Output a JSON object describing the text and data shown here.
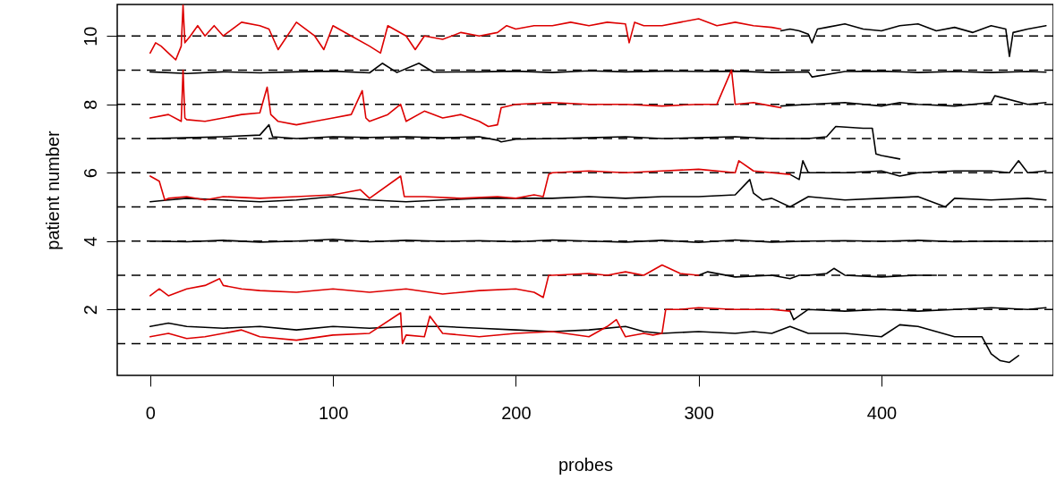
{
  "chart_data": {
    "type": "line",
    "xlabel": "probes",
    "ylabel": "patient number",
    "xlim": [
      -18,
      494
    ],
    "ylim": [
      0.07,
      10.92
    ],
    "xticks": [
      0,
      100,
      200,
      300,
      400
    ],
    "yticks": [
      2,
      4,
      6,
      8,
      10
    ],
    "grid": false,
    "marker": "none",
    "line_style": "solid",
    "ref_lines": [
      {
        "axis": "y",
        "value": 1,
        "line_style": "dashed",
        "color": "#000000"
      },
      {
        "axis": "y",
        "value": 2,
        "line_style": "dashed",
        "color": "#000000"
      },
      {
        "axis": "y",
        "value": 3,
        "line_style": "dashed",
        "color": "#000000"
      },
      {
        "axis": "y",
        "value": 4,
        "line_style": "dashed",
        "color": "#000000"
      },
      {
        "axis": "y",
        "value": 5,
        "line_style": "dashed",
        "color": "#000000"
      },
      {
        "axis": "y",
        "value": 6,
        "line_style": "dashed",
        "color": "#000000"
      },
      {
        "axis": "y",
        "value": 7,
        "line_style": "dashed",
        "color": "#000000"
      },
      {
        "axis": "y",
        "value": 8,
        "line_style": "dashed",
        "color": "#000000"
      },
      {
        "axis": "y",
        "value": 9,
        "line_style": "dashed",
        "color": "#000000"
      },
      {
        "axis": "y",
        "value": 10,
        "line_style": "dashed",
        "color": "#000000"
      }
    ],
    "series": [
      {
        "color": "#000000",
        "x": [
          345,
          350,
          355,
          360,
          362,
          365,
          370,
          380,
          390,
          400,
          410,
          420,
          430,
          440,
          450,
          460,
          468,
          470,
          472,
          480,
          490
        ],
        "values": [
          10.15,
          10.2,
          10.15,
          10.05,
          9.8,
          10.2,
          10.25,
          10.35,
          10.2,
          10.15,
          10.3,
          10.35,
          10.15,
          10.25,
          10.1,
          10.3,
          10.2,
          9.4,
          10.1,
          10.2,
          10.3
        ]
      },
      {
        "color": "#000000",
        "x": [
          0,
          20,
          40,
          60,
          80,
          100,
          120,
          127,
          135,
          147,
          155,
          180,
          200,
          220,
          240,
          260,
          280,
          300,
          320,
          340,
          360,
          362,
          380,
          400,
          420,
          440,
          460,
          480,
          490
        ],
        "values": [
          8.95,
          8.9,
          8.95,
          8.92,
          8.95,
          8.97,
          8.92,
          9.2,
          8.93,
          9.2,
          8.94,
          8.95,
          8.97,
          8.93,
          8.98,
          8.95,
          8.97,
          8.96,
          8.97,
          8.93,
          8.95,
          8.8,
          8.96,
          8.97,
          8.93,
          8.96,
          8.93,
          8.96,
          8.94
        ]
      },
      {
        "color": "#000000",
        "x": [
          345,
          360,
          380,
          400,
          410,
          420,
          440,
          460,
          462,
          480,
          490
        ],
        "values": [
          7.95,
          8.0,
          8.05,
          7.95,
          8.05,
          8.0,
          7.95,
          8.05,
          8.25,
          8.0,
          8.05
        ]
      },
      {
        "color": "#000000",
        "x": [
          0,
          20,
          40,
          60,
          65,
          67,
          80,
          100,
          120,
          140,
          160,
          180,
          190,
          192,
          200,
          220,
          240,
          260,
          280,
          300,
          320,
          340,
          360,
          370,
          375,
          390,
          395,
          397,
          400,
          410
        ],
        "values": [
          7.0,
          7.02,
          7.05,
          7.1,
          7.4,
          7.05,
          7.0,
          7.05,
          7.03,
          7.05,
          7.02,
          7.05,
          6.95,
          6.9,
          6.98,
          7.0,
          7.02,
          7.05,
          7.0,
          7.02,
          7.05,
          7.0,
          7.0,
          7.05,
          7.35,
          7.3,
          7.3,
          6.55,
          6.5,
          6.4
        ]
      },
      {
        "color": "#000000",
        "x": [
          350,
          355,
          357,
          360,
          380,
          400,
          410,
          420,
          440,
          460,
          470,
          475,
          480,
          490
        ],
        "values": [
          5.95,
          5.8,
          6.35,
          6.0,
          6.0,
          6.05,
          5.9,
          6.0,
          6.05,
          6.05,
          6.0,
          6.35,
          6.0,
          6.05
        ]
      },
      {
        "color": "#000000",
        "x": [
          0,
          10,
          20,
          40,
          60,
          80,
          100,
          120,
          140,
          160,
          180,
          200,
          220,
          240,
          260,
          280,
          300,
          320,
          328,
          330,
          335,
          340,
          350,
          360,
          380,
          400,
          420,
          435,
          440,
          460,
          480,
          490
        ],
        "values": [
          5.15,
          5.2,
          5.25,
          5.2,
          5.15,
          5.2,
          5.3,
          5.2,
          5.15,
          5.2,
          5.25,
          5.25,
          5.25,
          5.3,
          5.25,
          5.3,
          5.3,
          5.35,
          5.8,
          5.4,
          5.2,
          5.25,
          5.0,
          5.3,
          5.2,
          5.25,
          5.3,
          5.0,
          5.25,
          5.2,
          5.25,
          5.2
        ]
      },
      {
        "color": "#000000",
        "x": [
          0,
          20,
          40,
          60,
          80,
          100,
          120,
          140,
          160,
          180,
          200,
          220,
          240,
          260,
          280,
          300,
          320,
          340,
          360,
          380,
          400,
          420,
          440,
          460,
          480,
          490
        ],
        "values": [
          4.0,
          3.98,
          4.02,
          3.97,
          4.0,
          4.05,
          3.98,
          4.02,
          3.99,
          4.01,
          3.98,
          4.03,
          4.0,
          3.97,
          4.02,
          3.96,
          4.03,
          3.97,
          4.0,
          4.01,
          3.99,
          4.02,
          3.98,
          4.0,
          3.99,
          4.0
        ]
      },
      {
        "color": "#000000",
        "x": [
          300,
          305,
          320,
          340,
          350,
          355,
          360,
          370,
          374,
          380,
          400,
          420,
          430
        ],
        "values": [
          3.0,
          3.1,
          2.95,
          3.0,
          2.9,
          3.0,
          3.0,
          3.05,
          3.2,
          3.0,
          2.95,
          3.0,
          3.0
        ]
      },
      {
        "color": "#000000",
        "x": [
          350,
          352,
          360,
          380,
          400,
          420,
          440,
          460,
          480,
          490
        ],
        "values": [
          1.95,
          1.7,
          2.0,
          1.95,
          2.0,
          1.95,
          2.0,
          2.05,
          2.0,
          2.05
        ]
      },
      {
        "color": "#000000",
        "x": [
          0,
          10,
          20,
          40,
          60,
          80,
          100,
          120,
          140,
          160,
          180,
          200,
          220,
          240,
          260,
          270,
          280,
          300,
          320,
          330,
          340,
          350,
          360,
          380,
          400,
          410,
          420,
          430,
          440,
          450,
          455,
          460,
          465,
          470,
          475
        ],
        "values": [
          1.5,
          1.6,
          1.5,
          1.45,
          1.5,
          1.4,
          1.5,
          1.45,
          1.5,
          1.5,
          1.45,
          1.4,
          1.35,
          1.4,
          1.5,
          1.35,
          1.3,
          1.35,
          1.3,
          1.35,
          1.3,
          1.5,
          1.3,
          1.3,
          1.2,
          1.55,
          1.5,
          1.35,
          1.2,
          1.2,
          1.2,
          0.7,
          0.5,
          0.45,
          0.65
        ]
      },
      {
        "color": "#dd0000",
        "x": [
          0,
          3,
          6,
          10,
          14,
          17,
          18,
          19,
          22,
          26,
          30,
          35,
          40,
          50,
          60,
          65,
          70,
          80,
          90,
          95,
          100,
          110,
          120,
          126,
          130,
          140,
          145,
          150,
          160,
          170,
          180,
          190,
          195,
          200,
          210,
          220,
          230,
          240,
          250,
          260,
          262,
          265,
          270,
          280,
          290,
          300,
          310,
          320,
          330,
          340,
          345
        ],
        "values": [
          9.5,
          9.8,
          9.7,
          9.5,
          9.3,
          9.7,
          10.9,
          9.8,
          10.0,
          10.3,
          10.0,
          10.3,
          10.0,
          10.4,
          10.3,
          10.2,
          9.6,
          10.4,
          10.0,
          9.6,
          10.3,
          10.0,
          9.7,
          9.5,
          10.3,
          10.0,
          9.6,
          10.0,
          9.9,
          10.1,
          10.0,
          10.1,
          10.3,
          10.2,
          10.3,
          10.3,
          10.4,
          10.3,
          10.4,
          10.35,
          9.8,
          10.4,
          10.3,
          10.3,
          10.4,
          10.5,
          10.3,
          10.4,
          10.3,
          10.25,
          10.2
        ]
      },
      {
        "color": "#dd0000",
        "x": [
          0,
          10,
          17,
          18,
          19,
          20,
          30,
          40,
          50,
          60,
          64,
          66,
          70,
          80,
          90,
          100,
          110,
          116,
          118,
          120,
          130,
          137,
          140,
          150,
          160,
          170,
          180,
          185,
          190,
          192,
          200,
          220,
          240,
          260,
          280,
          300,
          310,
          318,
          320,
          330,
          340,
          345
        ],
        "values": [
          7.6,
          7.7,
          7.5,
          9.0,
          7.6,
          7.55,
          7.5,
          7.6,
          7.7,
          7.75,
          8.5,
          7.7,
          7.5,
          7.4,
          7.5,
          7.6,
          7.7,
          8.4,
          7.6,
          7.5,
          7.7,
          8.0,
          7.5,
          7.8,
          7.6,
          7.7,
          7.5,
          7.35,
          7.4,
          7.9,
          8.0,
          8.05,
          8.0,
          8.0,
          7.95,
          8.0,
          8.0,
          9.0,
          8.0,
          8.05,
          7.95,
          7.9
        ]
      },
      {
        "color": "#dd0000",
        "x": [
          0,
          5,
          8,
          10,
          20,
          30,
          40,
          60,
          80,
          100,
          115,
          120,
          137,
          139,
          150,
          170,
          190,
          200,
          210,
          215,
          218,
          220,
          240,
          260,
          280,
          300,
          320,
          322,
          330,
          340,
          350
        ],
        "values": [
          5.9,
          5.75,
          5.2,
          5.25,
          5.3,
          5.2,
          5.3,
          5.25,
          5.3,
          5.35,
          5.5,
          5.25,
          5.9,
          5.3,
          5.3,
          5.25,
          5.3,
          5.25,
          5.35,
          5.3,
          5.95,
          6.0,
          6.05,
          6.0,
          6.05,
          6.1,
          6.0,
          6.35,
          6.05,
          6.0,
          5.95
        ]
      },
      {
        "color": "#dd0000",
        "x": [
          0,
          5,
          10,
          20,
          30,
          38,
          40,
          50,
          60,
          80,
          100,
          120,
          140,
          160,
          180,
          200,
          210,
          215,
          218,
          220,
          240,
          250,
          260,
          270,
          280,
          290,
          300
        ],
        "values": [
          2.4,
          2.6,
          2.4,
          2.6,
          2.7,
          2.9,
          2.7,
          2.6,
          2.55,
          2.5,
          2.6,
          2.5,
          2.6,
          2.45,
          2.55,
          2.6,
          2.5,
          2.35,
          3.0,
          3.0,
          3.05,
          3.0,
          3.1,
          3.0,
          3.3,
          3.05,
          3.0
        ]
      },
      {
        "color": "#dd0000",
        "x": [
          0,
          10,
          20,
          30,
          40,
          50,
          60,
          80,
          100,
          120,
          137,
          138,
          140,
          150,
          153,
          160,
          180,
          200,
          220,
          240,
          250,
          255,
          260,
          270,
          275,
          280,
          282,
          290,
          300,
          320,
          340,
          350
        ],
        "values": [
          1.2,
          1.3,
          1.15,
          1.2,
          1.3,
          1.4,
          1.2,
          1.1,
          1.25,
          1.3,
          1.9,
          1.0,
          1.25,
          1.2,
          1.8,
          1.3,
          1.2,
          1.3,
          1.35,
          1.2,
          1.5,
          1.7,
          1.2,
          1.3,
          1.25,
          1.3,
          2.0,
          2.0,
          2.05,
          2.0,
          2.0,
          1.95
        ]
      }
    ]
  }
}
